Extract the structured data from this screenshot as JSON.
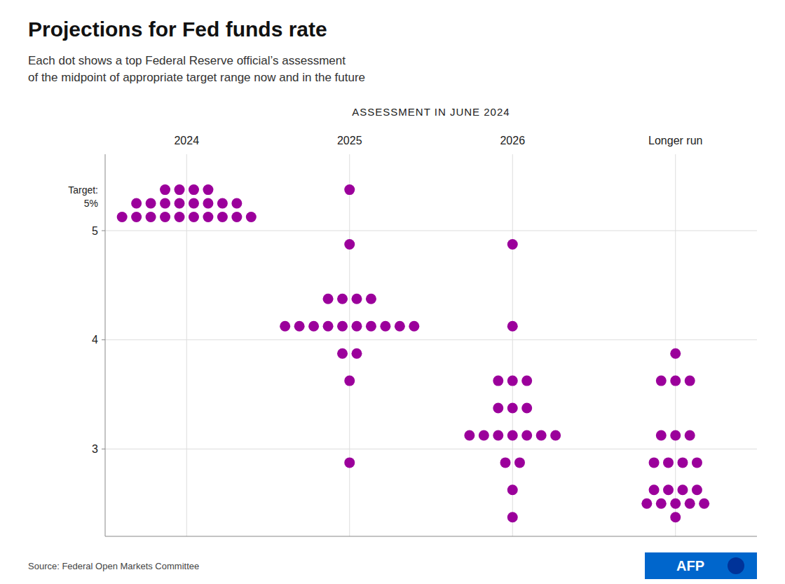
{
  "chart_data": {
    "type": "dot",
    "title": "Projections for Fed funds rate",
    "subtitle": "Each dot shows a top Federal Reserve official’s assessment\nof the midpoint of appropriate target range now and in the future",
    "xlabel": "ASSESSMENT IN JUNE 2024",
    "source": "Source: Federal Open Markets Committee",
    "categories": [
      "2024",
      "2025",
      "2026",
      "Longer run"
    ],
    "values": [
      [
        5.375,
        5.25,
        5.125
      ],
      [
        5.375,
        4.875,
        4.375,
        4.125,
        3.875,
        3.625,
        2.875
      ],
      [
        4.875,
        4.125,
        3.625,
        3.375,
        3.125,
        2.875,
        2.625,
        2.375
      ],
      [
        3.875,
        3.625,
        3.125,
        2.875,
        2.625,
        2.5,
        2.375
      ]
    ],
    "counts": [
      [
        4,
        8,
        10
      ],
      [
        1,
        1,
        4,
        10,
        2,
        1,
        1
      ],
      [
        1,
        1,
        3,
        3,
        7,
        2,
        1,
        1
      ],
      [
        1,
        3,
        3,
        4,
        4,
        5,
        1
      ]
    ],
    "color": "#9B009B",
    "ylim": [
      2.2,
      5.7
    ],
    "yticks": [
      3,
      4,
      5
    ],
    "grid": true,
    "annotations": [
      {
        "text": "Target:",
        "y": 5.375
      },
      {
        "text": "5%",
        "y": 5.25
      },
      {
        "text": "AFP"
      }
    ]
  }
}
